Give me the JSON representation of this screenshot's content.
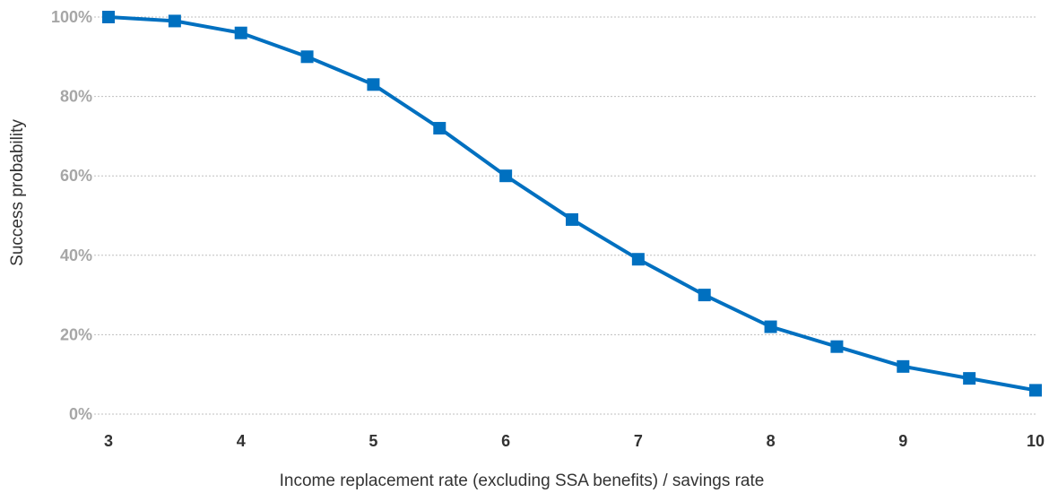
{
  "chart_data": {
    "type": "line",
    "title": "",
    "xlabel": "Income replacement rate (excluding SSA benefits) / savings rate",
    "ylabel": "Success probability",
    "xlim": [
      3,
      10
    ],
    "ylim": [
      0,
      100
    ],
    "x_ticks": [
      "3",
      "4",
      "5",
      "6",
      "7",
      "8",
      "9",
      "10"
    ],
    "y_ticks": [
      "0%",
      "20%",
      "40%",
      "60%",
      "80%",
      "100%"
    ],
    "grid": "horizontal",
    "legend": "none",
    "series": [
      {
        "color": "#0070c0",
        "marker": "square",
        "x": [
          3,
          3.5,
          4,
          4.5,
          5,
          5.5,
          6,
          6.5,
          7,
          7.5,
          8,
          8.5,
          9,
          9.5,
          10
        ],
        "y": [
          100,
          99,
          96,
          90,
          83,
          72,
          60,
          49,
          39,
          30,
          22,
          17,
          12,
          9,
          6
        ]
      }
    ]
  }
}
